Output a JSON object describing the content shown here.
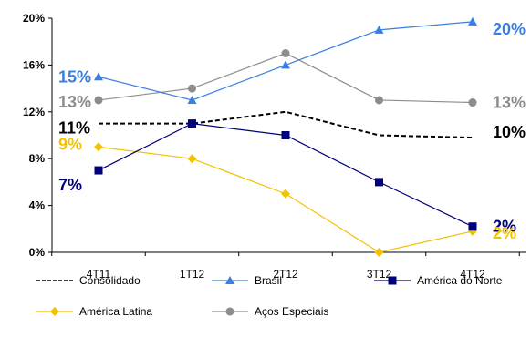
{
  "chart_data": {
    "type": "line",
    "categories": [
      "4T11",
      "1T12",
      "2T12",
      "3T12",
      "4T12"
    ],
    "ylim": [
      0,
      20
    ],
    "yticks": [
      0,
      4,
      8,
      12,
      16,
      20
    ],
    "ytick_labels": [
      "0%",
      "4%",
      "8%",
      "12%",
      "16%",
      "20%"
    ],
    "grid": false,
    "legend_position": "bottom",
    "series": [
      {
        "name": "Consolidado",
        "values": [
          11,
          11,
          12,
          10,
          9.8
        ],
        "color": "#000000",
        "dash": true,
        "marker": "none",
        "start_label": "11%",
        "end_label": "10%"
      },
      {
        "name": "Brasil",
        "values": [
          15,
          13,
          16,
          19,
          19.7
        ],
        "color": "#3A7FE0",
        "dash": false,
        "marker": "triangle",
        "start_label": "15%",
        "end_label": "20%"
      },
      {
        "name": "América do Norte",
        "values": [
          7,
          11,
          10,
          6,
          2.2
        ],
        "color": "#00007A",
        "dash": false,
        "marker": "square",
        "start_label": "7%",
        "end_label": "2%"
      },
      {
        "name": "América Latina",
        "values": [
          9,
          8,
          5,
          0,
          1.8
        ],
        "color": "#F2C200",
        "dash": false,
        "marker": "diamond",
        "start_label": "9%",
        "end_label": "2%"
      },
      {
        "name": "Aços Especiais",
        "values": [
          13,
          14,
          17,
          13,
          12.8
        ],
        "color": "#8C8C8C",
        "dash": false,
        "marker": "circle",
        "start_label": "13%",
        "end_label": "13%"
      }
    ]
  }
}
